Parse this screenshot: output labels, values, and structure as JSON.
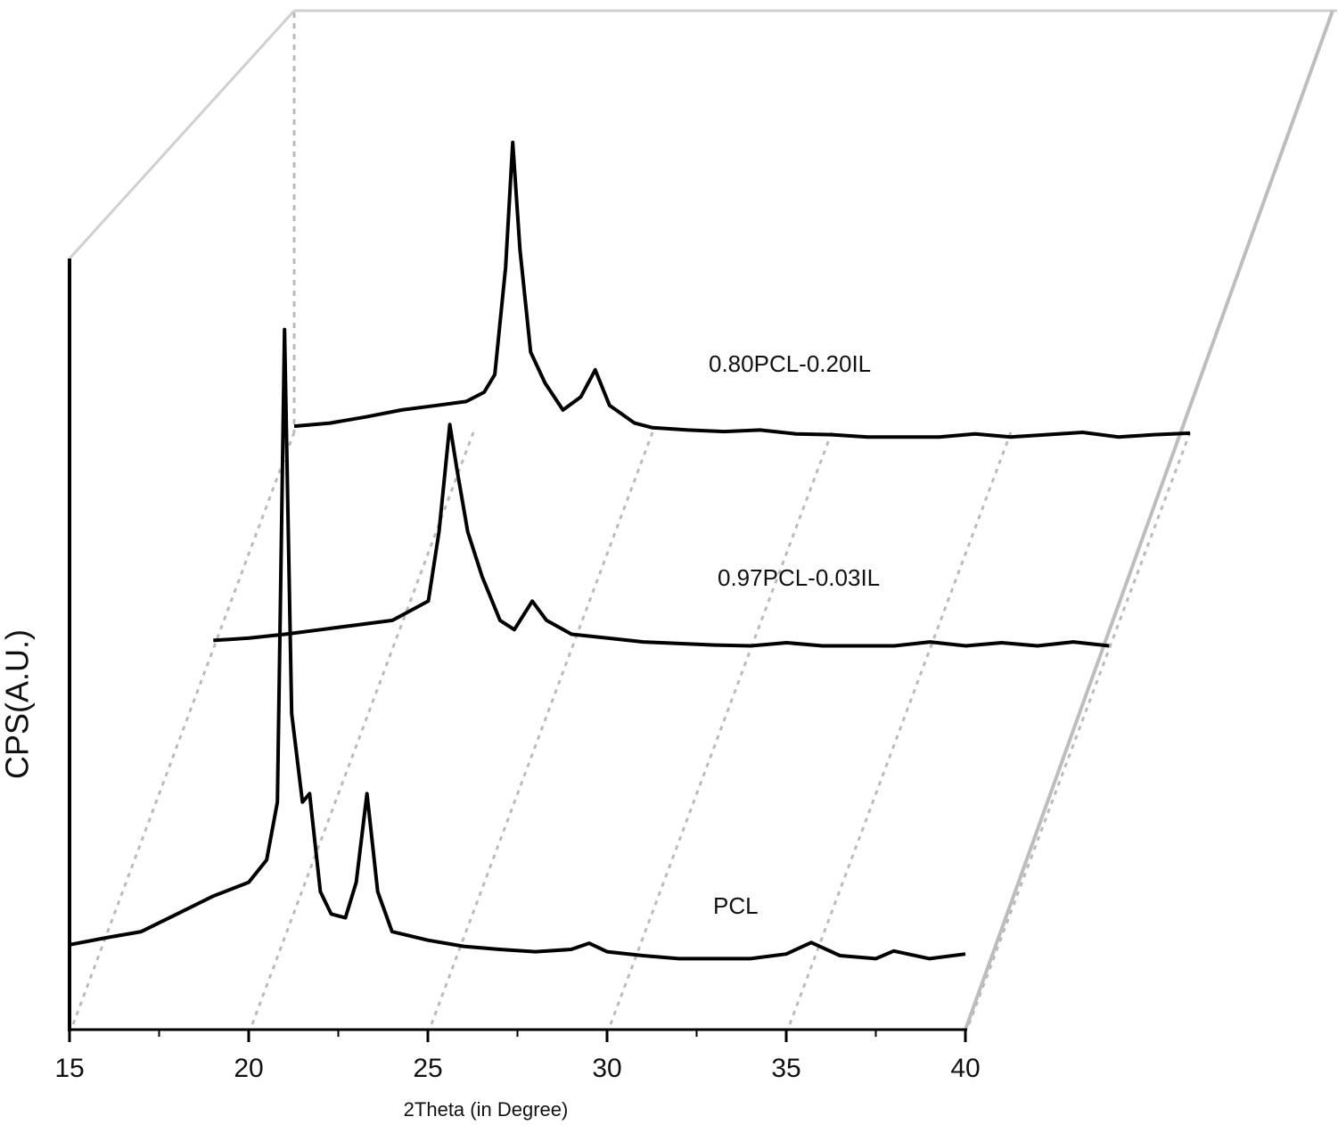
{
  "chart_data": {
    "type": "waterfall",
    "xlabel": "2Theta (in Degree)",
    "ylabel": "CPS(A.U.)",
    "xlim": [
      15,
      40
    ],
    "xticks": [
      15,
      20,
      25,
      30,
      35,
      40
    ],
    "ylim": [
      0,
      1000
    ],
    "series": [
      {
        "name": "PCL",
        "color": "#000000",
        "x": [
          15,
          16,
          17,
          18,
          19,
          20,
          20.5,
          20.8,
          21.0,
          21.2,
          21.5,
          21.7,
          22.0,
          22.3,
          22.7,
          23.0,
          23.3,
          23.6,
          24,
          25,
          26,
          27,
          28,
          29,
          29.5,
          30,
          31,
          32,
          33,
          34,
          35,
          35.7,
          36.5,
          37.5,
          38,
          39,
          40
        ],
        "values": [
          110,
          119,
          127,
          150,
          173,
          191,
          220,
          295,
          908,
          410,
          295,
          306,
          179,
          150,
          145,
          191,
          306,
          179,
          127,
          116,
          108,
          104,
          101,
          104,
          112,
          101,
          96,
          92,
          92,
          92,
          98,
          113,
          96,
          92,
          102,
          92,
          98
        ]
      },
      {
        "name": "0.97PCL-0.03IL",
        "color": "#000000",
        "x": [
          15,
          16,
          17,
          18,
          19,
          20,
          21.0,
          21.3,
          21.6,
          21.8,
          22.1,
          22.5,
          23.0,
          23.4,
          23.9,
          24.3,
          25,
          26,
          27,
          28,
          29,
          30,
          31,
          32,
          33,
          34,
          35,
          36,
          37,
          38,
          39,
          40
        ],
        "values": [
          9,
          12,
          17,
          23,
          29,
          35,
          60,
          150,
          289,
          231,
          150,
          92,
          35,
          23,
          60,
          35,
          17,
          12,
          7,
          5,
          3,
          2,
          6,
          2,
          2,
          2,
          7,
          2,
          6,
          2,
          7,
          2
        ]
      },
      {
        "name": "0.80PCL-0.20IL",
        "color": "#000000",
        "x": [
          15,
          16,
          17,
          18,
          19,
          19.8,
          20.3,
          20.6,
          20.9,
          21.1,
          21.3,
          21.6,
          22.0,
          22.5,
          23.0,
          23.4,
          23.8,
          24.5,
          25,
          26,
          27,
          28,
          29,
          30,
          31,
          32,
          33,
          34,
          35,
          36,
          37,
          38,
          39,
          40
        ],
        "values": [
          8,
          12,
          20,
          29,
          35,
          40,
          52,
          75,
          214,
          376,
          237,
          104,
          64,
          29,
          46,
          81,
          35,
          12,
          6,
          3,
          1,
          3,
          -2,
          -3,
          -6,
          -6,
          -6,
          -2,
          -6,
          -3,
          0,
          -6,
          -3,
          -1
        ]
      }
    ]
  }
}
